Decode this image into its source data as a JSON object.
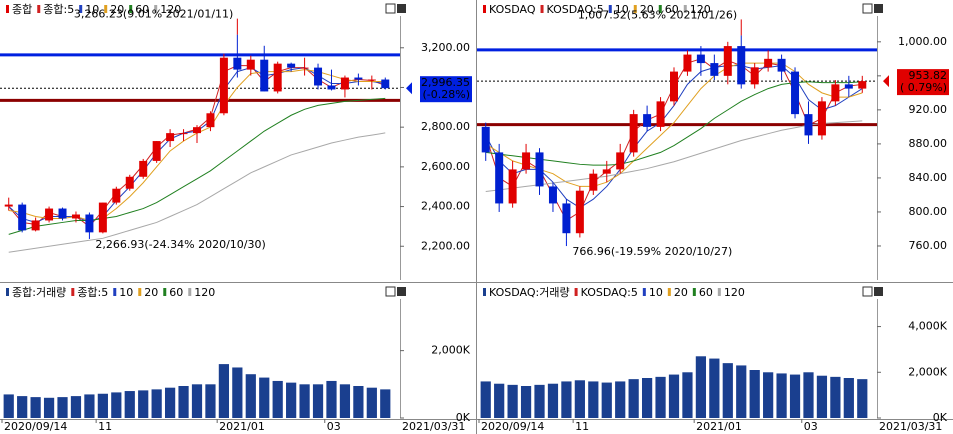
{
  "chart_data": [
    {
      "type": "candlestick",
      "name": "종합",
      "up_color": "#e00000",
      "down_color": "#0020d0",
      "open": [
        2400,
        2410,
        2280,
        2330,
        2390,
        2340,
        2360,
        2270,
        2420,
        2490,
        2550,
        2630,
        2730,
        2770,
        2770,
        2800,
        2870,
        3150,
        3090,
        3140,
        2980,
        3120,
        3100,
        3100,
        3010,
        2990,
        3050,
        3040,
        3040
      ],
      "high": [
        2445,
        2420,
        2345,
        2400,
        2395,
        2375,
        2370,
        2420,
        2500,
        2560,
        2640,
        2730,
        2790,
        2790,
        2810,
        2880,
        3170,
        3266.23,
        3160,
        3210,
        3130,
        3125,
        3150,
        3120,
        3090,
        3060,
        3070,
        3060,
        3050
      ],
      "low": [
        2380,
        2270,
        2275,
        2320,
        2330,
        2320,
        2266.93,
        2265,
        2410,
        2480,
        2540,
        2620,
        2700,
        2730,
        2720,
        2780,
        2860,
        3050,
        3060,
        2980,
        2970,
        3080,
        3060,
        2990,
        2985,
        2950,
        3010,
        2990,
        2990
      ],
      "close": [
        2410,
        2280,
        2330,
        2390,
        2340,
        2360,
        2270,
        2420,
        2490,
        2550,
        2630,
        2730,
        2770,
        2770,
        2800,
        2870,
        3150,
        3090,
        3140,
        2980,
        3120,
        3100,
        3100,
        3010,
        2990,
        3050,
        3040,
        3040,
        2996.35
      ],
      "series": [
        {
          "name": "종합:5",
          "color": "#d02020",
          "values": [
            2400,
            2320,
            2310,
            2370,
            2350,
            2350,
            2300,
            2380,
            2470,
            2530,
            2610,
            2700,
            2760,
            2770,
            2790,
            2850,
            3080,
            3110,
            3110,
            3030,
            3080,
            3100,
            3100,
            3040,
            3000,
            3030,
            3040,
            3035,
            3010
          ]
        },
        {
          "name": "10",
          "color": "#2040c0",
          "values": [
            2400,
            2340,
            2320,
            2350,
            2350,
            2350,
            2320,
            2350,
            2430,
            2500,
            2580,
            2670,
            2740,
            2770,
            2780,
            2830,
            2990,
            3080,
            3100,
            3060,
            3070,
            3090,
            3100,
            3060,
            3020,
            3020,
            3030,
            3030,
            3020
          ]
        },
        {
          "name": "20",
          "color": "#e0a020",
          "values": [
            2380,
            2370,
            2350,
            2340,
            2340,
            2350,
            2330,
            2340,
            2390,
            2450,
            2520,
            2600,
            2680,
            2730,
            2770,
            2800,
            2910,
            3000,
            3070,
            3080,
            3080,
            3080,
            3090,
            3080,
            3060,
            3040,
            3030,
            3030,
            3030
          ]
        },
        {
          "name": "60",
          "color": "#208020",
          "values": [
            2260,
            2280,
            2300,
            2310,
            2320,
            2330,
            2330,
            2340,
            2350,
            2370,
            2390,
            2420,
            2460,
            2500,
            2540,
            2580,
            2630,
            2680,
            2730,
            2780,
            2820,
            2860,
            2890,
            2910,
            2920,
            2930,
            2935,
            2940,
            2945
          ]
        },
        {
          "name": "120",
          "color": "#a8a8a8",
          "values": [
            2170,
            2180,
            2190,
            2200,
            2210,
            2220,
            2230,
            2240,
            2260,
            2280,
            2300,
            2320,
            2350,
            2380,
            2410,
            2450,
            2490,
            2530,
            2570,
            2600,
            2630,
            2660,
            2680,
            2700,
            2720,
            2735,
            2750,
            2760,
            2771
          ]
        }
      ],
      "ylim": [
        2030,
        3350
      ],
      "yticks": [
        {
          "value": 2200,
          "label": "2,200.00"
        },
        {
          "value": 2400,
          "label": "2,400.00"
        },
        {
          "value": 2600,
          "label": "2,600.00"
        },
        {
          "value": 2800,
          "label": "2,800.00"
        },
        {
          "value": 3000,
          "label": "3,000.00"
        },
        {
          "value": 3200,
          "label": "3,200.00"
        }
      ],
      "hlines": [
        {
          "value": 3164,
          "color": "#0020e0"
        },
        {
          "value": 2935,
          "color": "#8b0000"
        }
      ],
      "current": {
        "value": 2996.35,
        "label": "2,996.35",
        "change": "(-0.28%)",
        "color": "#0020e0"
      },
      "annotations": [
        {
          "text": "3,266.23(9.01% 2021/01/11)",
          "index": 17,
          "value": 3266.23,
          "color": "#e00000"
        },
        {
          "text": "2,266.93(-24.34% 2020/10/30)",
          "index": 6,
          "value": 2266.93,
          "color": "#0020e0"
        }
      ]
    },
    {
      "type": "candlestick",
      "name": "KOSDAQ",
      "up_color": "#e00000",
      "down_color": "#0020d0",
      "open": [
        900,
        870,
        810,
        850,
        870,
        830,
        810,
        775,
        825,
        845,
        850,
        870,
        915,
        900,
        930,
        965,
        985,
        975,
        960,
        995,
        950,
        970,
        980,
        965,
        915,
        890,
        930,
        950,
        945
      ],
      "high": [
        905,
        880,
        860,
        880,
        875,
        835,
        815,
        830,
        850,
        860,
        880,
        920,
        925,
        935,
        970,
        990,
        995,
        985,
        1000,
        1007.52,
        975,
        990,
        985,
        970,
        930,
        935,
        955,
        960,
        960
      ],
      "low": [
        860,
        800,
        805,
        845,
        820,
        800,
        766.96,
        770,
        820,
        835,
        845,
        865,
        895,
        895,
        925,
        960,
        960,
        955,
        950,
        945,
        945,
        965,
        955,
        910,
        880,
        885,
        925,
        935,
        940
      ],
      "close": [
        870,
        810,
        850,
        870,
        830,
        810,
        775,
        825,
        845,
        850,
        870,
        915,
        900,
        930,
        965,
        985,
        975,
        960,
        995,
        950,
        970,
        980,
        965,
        915,
        890,
        930,
        950,
        945,
        953.82
      ],
      "series": [
        {
          "name": "KOSDAQ:5",
          "color": "#d02020",
          "values": [
            890,
            840,
            830,
            860,
            850,
            820,
            790,
            800,
            835,
            848,
            860,
            895,
            908,
            915,
            948,
            975,
            980,
            968,
            978,
            972,
            960,
            975,
            972,
            940,
            902,
            910,
            940,
            948,
            950
          ]
        },
        {
          "name": "10",
          "color": "#2040c0",
          "values": [
            890,
            860,
            845,
            850,
            850,
            835,
            815,
            805,
            815,
            830,
            850,
            875,
            895,
            905,
            925,
            950,
            965,
            970,
            972,
            972,
            968,
            970,
            972,
            958,
            932,
            920,
            925,
            935,
            945
          ]
        },
        {
          "name": "20",
          "color": "#e0a020",
          "values": [
            880,
            870,
            860,
            855,
            850,
            845,
            835,
            830,
            830,
            835,
            845,
            860,
            875,
            890,
            905,
            925,
            945,
            960,
            970,
            975,
            975,
            975,
            975,
            965,
            950,
            940,
            935,
            935,
            940
          ]
        },
        {
          "name": "60",
          "color": "#208020",
          "values": [
            870,
            868,
            866,
            864,
            862,
            860,
            858,
            856,
            855,
            855,
            856,
            860,
            865,
            870,
            878,
            888,
            898,
            910,
            920,
            930,
            938,
            945,
            950,
            952,
            953,
            952,
            952,
            952,
            953
          ]
        },
        {
          "name": "120",
          "color": "#a8a8a8",
          "values": [
            824,
            826,
            828,
            830,
            832,
            834,
            836,
            838,
            840,
            842,
            845,
            848,
            851,
            855,
            859,
            864,
            869,
            874,
            879,
            884,
            888,
            892,
            896,
            899,
            902,
            904,
            905,
            906,
            907
          ]
        }
      ],
      "ylim": [
        720,
        1028
      ],
      "yticks": [
        {
          "value": 760,
          "label": "760.00"
        },
        {
          "value": 800,
          "label": "800.00"
        },
        {
          "value": 840,
          "label": "840.00"
        },
        {
          "value": 880,
          "label": "880.00"
        },
        {
          "value": 920,
          "label": "920.00"
        },
        {
          "value": 960,
          "label": "960.00"
        },
        {
          "value": 1000,
          "label": "1,000.00"
        }
      ],
      "hlines": [
        {
          "value": 990.5,
          "color": "#0020e0"
        },
        {
          "value": 902.6,
          "color": "#8b0000"
        }
      ],
      "current": {
        "value": 953.82,
        "label": "953.82",
        "change": "( 0.79%)",
        "color": "#e00000"
      },
      "annotations": [
        {
          "text": "1,007.52(5.63% 2021/01/26)",
          "index": 19,
          "value": 1007.52,
          "color": "#e00000"
        },
        {
          "text": "766.96(-19.59% 2020/10/27)",
          "index": 6,
          "value": 766.96,
          "color": "#0020e0"
        }
      ]
    },
    {
      "type": "bar",
      "name": "종합:거래량",
      "color": "#1a3f8f",
      "legend": [
        {
          "name": "종합:5",
          "color": "#d02020"
        },
        {
          "name": "10",
          "color": "#2040c0"
        },
        {
          "name": "20",
          "color": "#e0a020"
        },
        {
          "name": "60",
          "color": "#208020"
        },
        {
          "name": "120",
          "color": "#a8a8a8"
        }
      ],
      "values": [
        700,
        650,
        620,
        600,
        620,
        650,
        700,
        720,
        760,
        800,
        820,
        850,
        900,
        950,
        1000,
        1000,
        1600,
        1500,
        1300,
        1200,
        1100,
        1050,
        1000,
        1000,
        1100,
        1000,
        950,
        900,
        850
      ],
      "ylim": [
        0,
        3800
      ],
      "yticks": [
        {
          "value": 0,
          "label": "0K"
        },
        {
          "value": 2000,
          "label": "2,000K"
        }
      ],
      "categories": [
        "2020/09/14",
        null,
        null,
        null,
        null,
        null,
        null,
        "11",
        null,
        null,
        null,
        null,
        null,
        null,
        null,
        null,
        "2021/01",
        null,
        null,
        null,
        null,
        null,
        null,
        null,
        "03",
        null,
        null,
        null,
        null
      ],
      "end_label": "2021/03/31"
    },
    {
      "type": "bar",
      "name": "KOSDAQ:거래량",
      "color": "#1a3f8f",
      "legend": [
        {
          "name": "KOSDAQ:5",
          "color": "#d02020"
        },
        {
          "name": "10",
          "color": "#2040c0"
        },
        {
          "name": "20",
          "color": "#e0a020"
        },
        {
          "name": "60",
          "color": "#208020"
        },
        {
          "name": "120",
          "color": "#a8a8a8"
        }
      ],
      "values": [
        1600,
        1500,
        1450,
        1400,
        1450,
        1500,
        1600,
        1650,
        1600,
        1550,
        1600,
        1700,
        1750,
        1800,
        1900,
        2000,
        2700,
        2600,
        2400,
        2300,
        2100,
        2000,
        1950,
        1900,
        2000,
        1850,
        1800,
        1750,
        1700
      ],
      "ylim": [
        0,
        5600
      ],
      "yticks": [
        {
          "value": 0,
          "label": "0K"
        },
        {
          "value": 2000,
          "label": "2,000K"
        },
        {
          "value": 4000,
          "label": "4,000K"
        }
      ],
      "categories": [
        "2020/09/14",
        null,
        null,
        null,
        null,
        null,
        null,
        "11",
        null,
        null,
        null,
        null,
        null,
        null,
        null,
        null,
        "2021/01",
        null,
        null,
        null,
        null,
        null,
        null,
        null,
        "03",
        null,
        null,
        null,
        null
      ],
      "end_label": "2021/03/31"
    }
  ]
}
